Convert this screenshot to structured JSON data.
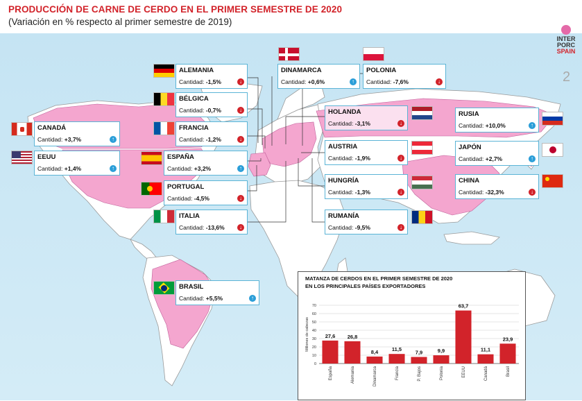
{
  "header": {
    "title": "PRODUCCIÓN DE CARNE DE CERDO EN EL PRIMER SEMESTRE DE 2020",
    "subtitle": "(Variación en % respecto al primer semestre de 2019)"
  },
  "logo": {
    "line1": "INTER",
    "line2": "PORC",
    "line3": "SPAIN"
  },
  "page_number": "2",
  "colors": {
    "up": "#2b9ed8",
    "down": "#d2232a",
    "highlight": "#f4a6cf",
    "bar": "#d2232a",
    "ocean": "#cfe8f5"
  },
  "countries": [
    {
      "id": "alemania",
      "name": "ALEMANIA",
      "label": "Cantidad:",
      "value": "-1,5%",
      "trend": "down"
    },
    {
      "id": "dinamarca",
      "name": "DINAMARCA",
      "label": "Cantidad:",
      "value": "+0,6%",
      "trend": "up"
    },
    {
      "id": "polonia",
      "name": "POLONIA",
      "label": "Cantidad:",
      "value": "-7,6%",
      "trend": "down"
    },
    {
      "id": "belgica",
      "name": "BÉLGICA",
      "label": "Cantidad:",
      "value": "-0,7%",
      "trend": "down"
    },
    {
      "id": "canada",
      "name": "CANADÁ",
      "label": "Cantidad:",
      "value": "+3,7%",
      "trend": "up"
    },
    {
      "id": "francia",
      "name": "FRANCIA",
      "label": "Cantidad:",
      "value": "-1,2%",
      "trend": "down"
    },
    {
      "id": "holanda",
      "name": "HOLANDA",
      "label": "Cantidad:",
      "value": "-3,1%",
      "trend": "down"
    },
    {
      "id": "rusia",
      "name": "RUSIA",
      "label": "Cantidad:",
      "value": "+10,0%",
      "trend": "up"
    },
    {
      "id": "eeuu",
      "name": "EEUU",
      "label": "Cantidad:",
      "value": "+1,4%",
      "trend": "up"
    },
    {
      "id": "espana",
      "name": "ESPAÑA",
      "label": "Cantidad:",
      "value": "+3,2%",
      "trend": "up"
    },
    {
      "id": "austria",
      "name": "AUSTRIA",
      "label": "Cantidad:",
      "value": "-1,9%",
      "trend": "down"
    },
    {
      "id": "japon",
      "name": "JAPÓN",
      "label": "Cantidad:",
      "value": "+2,7%",
      "trend": "up"
    },
    {
      "id": "portugal",
      "name": "PORTUGAL",
      "label": "Cantidad:",
      "value": "-4,5%",
      "trend": "down"
    },
    {
      "id": "hungria",
      "name": "HUNGRÍA",
      "label": "Cantidad:",
      "value": "-1,3%",
      "trend": "down"
    },
    {
      "id": "china",
      "name": "CHINA",
      "label": "Cantidad:",
      "value": "-32,3%",
      "trend": "down"
    },
    {
      "id": "italia",
      "name": "ITALIA",
      "label": "Cantidad:",
      "value": "-13,6%",
      "trend": "down"
    },
    {
      "id": "rumania",
      "name": "RUMANÍA",
      "label": "Cantidad:",
      "value": "-9,5%",
      "trend": "down"
    },
    {
      "id": "brasil",
      "name": "BRASIL",
      "label": "Cantidad:",
      "value": "+5,5%",
      "trend": "up"
    }
  ],
  "chart_data": {
    "type": "bar",
    "title": "MATANZA DE CERDOS EN EL PRIMER SEMESTRE DE 2020",
    "subtitle": "EN LOS PRINCIPALES PAÍSES EXPORTADORES",
    "ylabel": "Millones de cabezas",
    "xlabel": "",
    "ylim": [
      0,
      70
    ],
    "yticks": [
      0,
      10,
      20,
      30,
      40,
      50,
      60,
      70
    ],
    "grid": true,
    "categories": [
      "España",
      "Alemania",
      "Dinamarca",
      "Francia",
      "P. Bajos",
      "Polonia",
      "EEUU",
      "Canadá",
      "Brasil"
    ],
    "values": [
      27.6,
      26.8,
      8.4,
      11.5,
      7.9,
      9.9,
      63.7,
      11.1,
      23.9
    ],
    "value_labels": [
      "27,6",
      "26,8",
      "8,4",
      "11,5",
      "7,9",
      "9,9",
      "63,7",
      "11,1",
      "23,9"
    ]
  }
}
